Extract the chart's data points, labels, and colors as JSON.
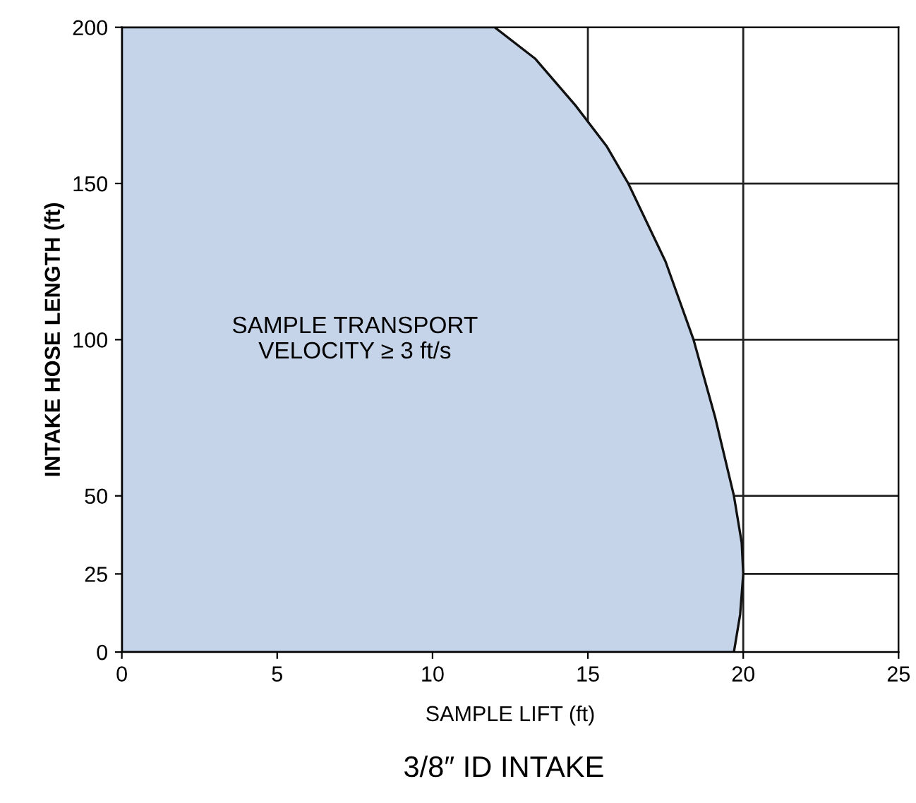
{
  "chart_data": {
    "type": "area",
    "title": "3/8″ ID INTAKE",
    "xlabel": "SAMPLE LIFT (ft)",
    "ylabel": "INTAKE HOSE LENGTH (ft)",
    "series": [
      {
        "color": "#c6d4ea",
        "x": [
          0,
          0,
          12,
          13.3,
          14.6,
          15.6,
          16.3,
          17.5,
          18.4,
          19.1,
          19.7,
          19.95,
          20,
          19.9,
          19.7
        ],
        "values": [
          0,
          200,
          200,
          190,
          175,
          162,
          150,
          125,
          100,
          75,
          50,
          35,
          25,
          12,
          0
        ]
      }
    ],
    "annotations": [
      "SAMPLE TRANSPORT\nVELOCITY ≥ 3 ft/s"
    ],
    "xlim": [
      0,
      25
    ],
    "xticks": [
      0,
      5,
      10,
      15,
      20,
      25
    ],
    "ylim": [
      0,
      200
    ],
    "yticks": [
      0,
      25,
      50,
      100,
      150,
      200
    ],
    "grid": true
  }
}
